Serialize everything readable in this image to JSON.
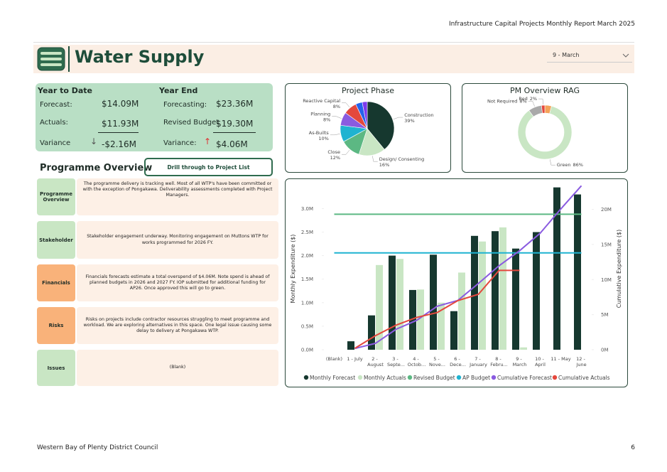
{
  "header": {
    "title": "Infrastructure Capital Projects Monthly Report March 2025"
  },
  "footer": {
    "organisation": "Western Bay of Plenty District Council",
    "page": "6"
  },
  "banner": {
    "title": "Water Supply",
    "dropdown": "9 - March"
  },
  "kpis": {
    "year_to_date": {
      "heading": "Year to Date",
      "forecast_label": "Forecast:",
      "forecast": "$14.09M",
      "actuals_label": "Actuals:",
      "actuals": "$11.93M",
      "variance_label": "Variance",
      "variance_arrow": "↓",
      "variance": "-$2.16M"
    },
    "year_end": {
      "heading": "Year End",
      "forecast_label": "Forecasting:",
      "forecast": "$23.36M",
      "budget_label": "Revised Budget",
      "budget": "$19.30M",
      "variance_label": "Variance:",
      "variance_arrow": "↑",
      "variance": "$4.06M"
    }
  },
  "programme": {
    "title": "Programme Overview",
    "button": "Drill through to Project List",
    "rows": [
      {
        "label": "Programme Overview",
        "text": "The programme delivery is tracking well. Most of all WTP's have been committed or with the exception of Pongakawa. Deliverability assessments completed with Project Managers."
      },
      {
        "label": "Stakeholder",
        "text": "Stakeholder engagement underway. Monitoring engagement on Muttons WTP for works programmed for 2026 FY."
      },
      {
        "label": "Financials",
        "text": "Financials forecasts estimate a total overspend of $4.06M. Note spend is ahead of planned budgets in 2026 and 2027 FY. IOP submitted for additional funding for AP26. Once approved this will go to green."
      },
      {
        "label": "Risks",
        "text": "Risks on projects include contractor resources struggling to meet programme and workload. We are exploring alternatives in this space. One legal issue causing some delay to delivery at Pongakawa WTP."
      },
      {
        "label": "Issues",
        "text": "(Blank)"
      }
    ]
  },
  "chart_data": [
    {
      "type": "pie",
      "title": "Project Phase",
      "labels": [
        "Construction",
        "Design/ Consenting",
        "Close",
        "As-Builts",
        "Planning",
        "Reactive Capital",
        null,
        null
      ],
      "values": [
        39,
        16,
        12,
        10,
        8,
        8,
        4,
        3
      ],
      "value_labels": [
        "39%",
        "16%",
        "12%",
        "10%",
        "8%",
        "8%",
        null,
        null
      ],
      "colors": [
        "#16382f",
        "#c9e6c4",
        "#5cb883",
        "#1fb3d1",
        "#8a5be0",
        "#e4483d",
        "#2563eb",
        "#7c3aed"
      ]
    },
    {
      "type": "donut",
      "title": "PM Overview RAG",
      "labels": [
        null,
        "Green",
        "Not Required",
        "Red"
      ],
      "values": [
        4,
        86,
        8,
        2
      ],
      "value_labels": [
        null,
        "86%",
        "8%",
        "2%"
      ],
      "colors": [
        "#f4a259",
        "#c9e6c4",
        "#a9a9a9",
        "#e4483d"
      ]
    },
    {
      "type": "combo",
      "categories": [
        "(Blank)",
        "1 - July",
        "2 - August",
        "3 - Septe...",
        "4 - Octob...",
        "5 - Nove...",
        "6 - Dece...",
        "7 - January",
        "8 - Febru...",
        "9 - March",
        "10 - April",
        "11 - May",
        "12 - June"
      ],
      "ylabel": "Monthly Expenditure ($)",
      "y2label": "Cumulative Expenditure ($)",
      "ylim": [
        0,
        3.55
      ],
      "yticks": [
        {
          "value": 0,
          "label": "0.0M"
        },
        {
          "value": 0.5,
          "label": "0.5M"
        },
        {
          "value": 1,
          "label": "1.0M"
        },
        {
          "value": 1.5,
          "label": "1.5M"
        },
        {
          "value": 2,
          "label": "2.0M"
        },
        {
          "value": 2.5,
          "label": "2.5M"
        },
        {
          "value": 3,
          "label": "3.0M"
        }
      ],
      "y2lim": [
        0,
        23.8
      ],
      "y2ticks": [
        {
          "value": 0,
          "label": "0M"
        },
        {
          "value": 5,
          "label": "5M"
        },
        {
          "value": 10,
          "label": "10M"
        },
        {
          "value": 15,
          "label": "15M"
        },
        {
          "value": 20,
          "label": "20M"
        }
      ],
      "series": [
        {
          "name": "Monthly Forecast",
          "color": "#16382f",
          "kind": "bar",
          "values": [
            null,
            0.18,
            0.73,
            2.0,
            1.27,
            2.02,
            0.82,
            2.42,
            2.52,
            2.15,
            2.5,
            3.45,
            3.3
          ]
        },
        {
          "name": "Monthly Actuals",
          "color": "#c9e6c4",
          "kind": "bar",
          "values": [
            null,
            null,
            1.8,
            1.93,
            1.28,
            1.0,
            1.64,
            2.3,
            2.6,
            0.05,
            null,
            null,
            null
          ]
        },
        {
          "name": "Revised Budget",
          "color": "#5cb883",
          "kind": "line",
          "axis": "y2",
          "values": [
            19.3,
            19.3,
            19.3,
            19.3,
            19.3,
            19.3,
            19.3,
            19.3,
            19.3,
            19.3,
            19.3,
            19.3,
            19.3
          ]
        },
        {
          "name": "AP Budget",
          "color": "#1fb3d1",
          "kind": "line",
          "axis": "y2",
          "values": [
            13.8,
            13.8,
            13.8,
            13.8,
            13.8,
            13.8,
            13.8,
            13.8,
            13.8,
            13.8,
            13.8,
            13.8,
            13.8
          ]
        },
        {
          "name": "Cumulative Forecast",
          "color": "#8a5be0",
          "kind": "line",
          "axis": "y2",
          "values": [
            null,
            0.18,
            0.91,
            2.91,
            4.18,
            6.2,
            7.02,
            9.44,
            11.96,
            14.11,
            16.61,
            20.06,
            23.36
          ]
        },
        {
          "name": "Cumulative Actuals",
          "color": "#e4483d",
          "kind": "line",
          "axis": "y2",
          "values": [
            null,
            0.2,
            2.0,
            3.5,
            4.6,
            5.3,
            7.0,
            7.9,
            11.3,
            11.3,
            null,
            null,
            null
          ]
        }
      ]
    }
  ]
}
